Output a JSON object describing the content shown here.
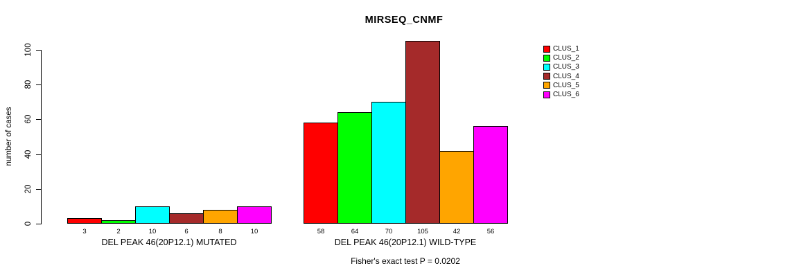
{
  "chart_data": {
    "type": "grouped_bar",
    "title": "MIRSEQ_CNMF",
    "ylabel": "number of cases",
    "ylim": [
      0,
      100
    ],
    "yticks": [
      0,
      20,
      40,
      60,
      80,
      100
    ],
    "grid": false,
    "legend_position": "right",
    "bar_value_labels_shown": true,
    "series": [
      {
        "name": "CLUS_1",
        "color": "#FF0000",
        "values": [
          3,
          58
        ]
      },
      {
        "name": "CLUS_2",
        "color": "#00FF00",
        "values": [
          2,
          64
        ]
      },
      {
        "name": "CLUS_3",
        "color": "#00FFFF",
        "values": [
          10,
          70
        ]
      },
      {
        "name": "CLUS_4",
        "color": "#A52A2A",
        "values": [
          6,
          105
        ]
      },
      {
        "name": "CLUS_5",
        "color": "#FFA500",
        "values": [
          8,
          42
        ]
      },
      {
        "name": "CLUS_6",
        "color": "#FF00FF",
        "values": [
          10,
          56
        ]
      }
    ],
    "groups": [
      "DEL PEAK 46(20P12.1) MUTATED",
      "DEL PEAK 46(20P12.1) WILD-TYPE"
    ],
    "footnote": "Fisher's exact test P = 0.0202"
  }
}
